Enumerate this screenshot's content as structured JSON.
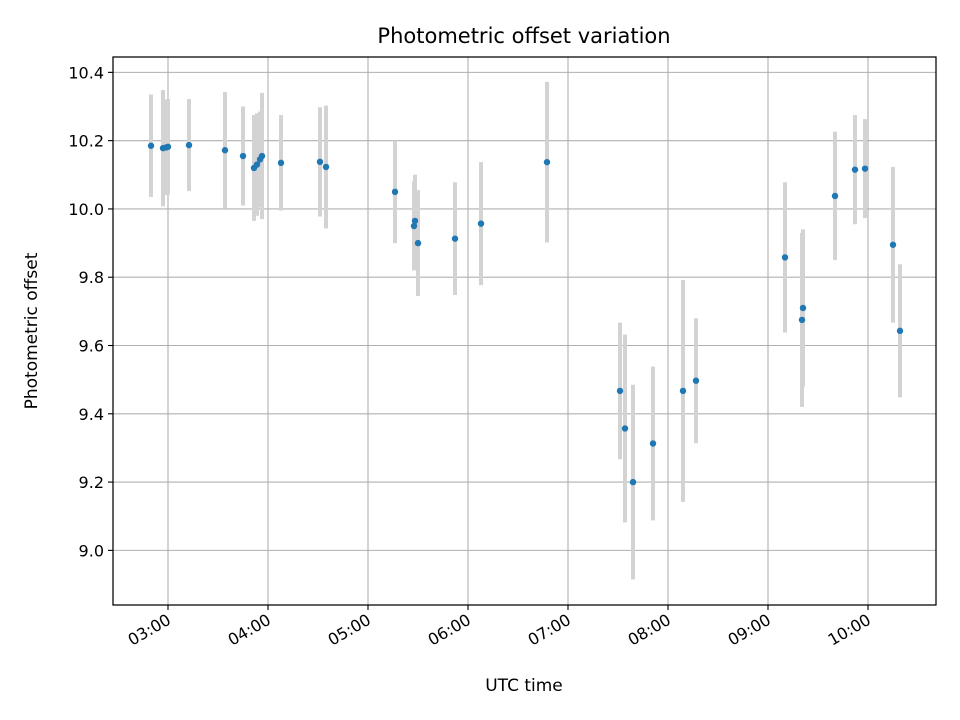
{
  "chart_data": {
    "type": "scatter",
    "title": "Photometric offset variation",
    "xlabel": "UTC time",
    "ylabel": "Photometric offset",
    "x_unit": "hours UTC",
    "xlim": [
      2.45,
      10.68
    ],
    "ylim": [
      8.84,
      10.445
    ],
    "grid": true,
    "x_ticks": [
      {
        "value": 3,
        "label": "03:00"
      },
      {
        "value": 4,
        "label": "04:00"
      },
      {
        "value": 5,
        "label": "05:00"
      },
      {
        "value": 6,
        "label": "06:00"
      },
      {
        "value": 7,
        "label": "07:00"
      },
      {
        "value": 8,
        "label": "08:00"
      },
      {
        "value": 9,
        "label": "09:00"
      },
      {
        "value": 10,
        "label": "10:00"
      }
    ],
    "y_ticks": [
      {
        "value": 9.0,
        "label": "9.0"
      },
      {
        "value": 9.2,
        "label": "9.2"
      },
      {
        "value": 9.4,
        "label": "9.4"
      },
      {
        "value": 9.6,
        "label": "9.6"
      },
      {
        "value": 9.8,
        "label": "9.8"
      },
      {
        "value": 10.0,
        "label": "10.0"
      },
      {
        "value": 10.2,
        "label": "10.2"
      },
      {
        "value": 10.4,
        "label": "10.4"
      }
    ],
    "colors": {
      "points": "#1f77b4",
      "errorbars": "#d3d3d3",
      "grid": "#b0b0b0",
      "axes": "#000000"
    },
    "series": [
      {
        "name": "Photometric offset",
        "points": [
          {
            "x": 2.83,
            "y": 10.185,
            "err": 0.15
          },
          {
            "x": 2.95,
            "y": 10.178,
            "err": 0.17
          },
          {
            "x": 2.98,
            "y": 10.18,
            "err": 0.14
          },
          {
            "x": 3.0,
            "y": 10.182,
            "err": 0.14
          },
          {
            "x": 3.21,
            "y": 10.187,
            "err": 0.135
          },
          {
            "x": 3.57,
            "y": 10.172,
            "err": 0.17
          },
          {
            "x": 3.75,
            "y": 10.155,
            "err": 0.145
          },
          {
            "x": 3.86,
            "y": 10.12,
            "err": 0.155
          },
          {
            "x": 3.89,
            "y": 10.13,
            "err": 0.15
          },
          {
            "x": 3.92,
            "y": 10.145,
            "err": 0.14
          },
          {
            "x": 3.94,
            "y": 10.155,
            "err": 0.185
          },
          {
            "x": 4.13,
            "y": 10.135,
            "err": 0.14
          },
          {
            "x": 4.52,
            "y": 10.138,
            "err": 0.16
          },
          {
            "x": 4.58,
            "y": 10.123,
            "err": 0.18
          },
          {
            "x": 5.27,
            "y": 10.05,
            "err": 0.15
          },
          {
            "x": 5.46,
            "y": 9.95,
            "err": 0.13
          },
          {
            "x": 5.47,
            "y": 9.965,
            "err": 0.135
          },
          {
            "x": 5.5,
            "y": 9.9,
            "err": 0.155
          },
          {
            "x": 5.87,
            "y": 9.913,
            "err": 0.165
          },
          {
            "x": 6.13,
            "y": 9.957,
            "err": 0.18
          },
          {
            "x": 6.79,
            "y": 10.137,
            "err": 0.235
          },
          {
            "x": 7.52,
            "y": 9.467,
            "err": 0.2
          },
          {
            "x": 7.57,
            "y": 9.357,
            "err": 0.275
          },
          {
            "x": 7.65,
            "y": 9.2,
            "err": 0.285
          },
          {
            "x": 7.85,
            "y": 9.313,
            "err": 0.225
          },
          {
            "x": 8.15,
            "y": 9.467,
            "err": 0.325
          },
          {
            "x": 8.28,
            "y": 9.497,
            "err": 0.183
          },
          {
            "x": 9.17,
            "y": 9.858,
            "err": 0.22
          },
          {
            "x": 9.34,
            "y": 9.675,
            "err": 0.255
          },
          {
            "x": 9.35,
            "y": 9.71,
            "err": 0.23
          },
          {
            "x": 9.67,
            "y": 10.038,
            "err": 0.188
          },
          {
            "x": 9.87,
            "y": 10.115,
            "err": 0.16
          },
          {
            "x": 9.97,
            "y": 10.118,
            "err": 0.145
          },
          {
            "x": 10.25,
            "y": 9.895,
            "err": 0.228
          },
          {
            "x": 10.32,
            "y": 9.643,
            "err": 0.195
          }
        ]
      }
    ]
  }
}
